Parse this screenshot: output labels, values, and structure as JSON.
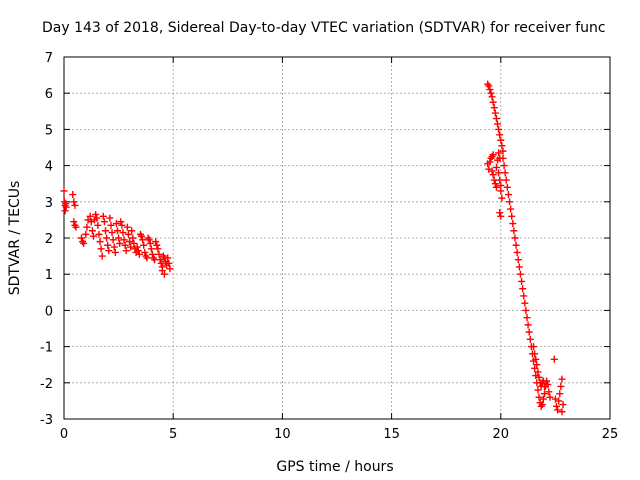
{
  "chart_data": {
    "type": "scatter",
    "title": "Day 143 of 2018, Sidereal Day-to-day VTEC variation (SDTVAR) for receiver func",
    "xlabel": "GPS time / hours",
    "ylabel": "SDTVAR / TECUs",
    "xlim": [
      0,
      25
    ],
    "ylim": [
      -3,
      7
    ],
    "x_ticks": [
      0,
      5,
      10,
      15,
      20,
      25
    ],
    "y_ticks": [
      -3,
      -2,
      -1,
      0,
      1,
      2,
      3,
      4,
      5,
      6,
      7
    ],
    "grid": true,
    "marker": "plus",
    "color": "#ff0000",
    "series": [
      {
        "name": "SDTVAR",
        "points": [
          [
            0.0,
            3.3
          ],
          [
            0.02,
            3.0
          ],
          [
            0.05,
            2.9
          ],
          [
            0.05,
            2.75
          ],
          [
            0.08,
            2.95
          ],
          [
            0.1,
            2.85
          ],
          [
            0.4,
            3.2
          ],
          [
            0.45,
            3.0
          ],
          [
            0.5,
            2.9
          ],
          [
            0.45,
            2.45
          ],
          [
            0.5,
            2.35
          ],
          [
            0.55,
            2.3
          ],
          [
            0.8,
            2.0
          ],
          [
            0.85,
            1.9
          ],
          [
            0.9,
            1.85
          ],
          [
            1.0,
            2.1
          ],
          [
            1.05,
            2.3
          ],
          [
            1.1,
            2.5
          ],
          [
            1.2,
            2.6
          ],
          [
            1.25,
            2.45
          ],
          [
            1.3,
            2.2
          ],
          [
            1.35,
            2.05
          ],
          [
            1.4,
            2.5
          ],
          [
            1.45,
            2.65
          ],
          [
            1.5,
            2.55
          ],
          [
            1.55,
            2.35
          ],
          [
            1.6,
            2.1
          ],
          [
            1.65,
            1.9
          ],
          [
            1.7,
            1.7
          ],
          [
            1.75,
            1.5
          ],
          [
            1.8,
            2.6
          ],
          [
            1.85,
            2.45
          ],
          [
            1.9,
            2.2
          ],
          [
            1.95,
            2.0
          ],
          [
            2.0,
            1.8
          ],
          [
            2.05,
            1.65
          ],
          [
            2.1,
            2.55
          ],
          [
            2.15,
            2.35
          ],
          [
            2.2,
            2.15
          ],
          [
            2.25,
            1.95
          ],
          [
            2.3,
            1.75
          ],
          [
            2.35,
            1.6
          ],
          [
            2.4,
            2.4
          ],
          [
            2.45,
            2.2
          ],
          [
            2.5,
            2.0
          ],
          [
            2.55,
            1.85
          ],
          [
            2.6,
            2.45
          ],
          [
            2.65,
            2.35
          ],
          [
            2.7,
            2.15
          ],
          [
            2.75,
            1.95
          ],
          [
            2.8,
            1.8
          ],
          [
            2.85,
            1.65
          ],
          [
            2.9,
            2.3
          ],
          [
            2.95,
            2.1
          ],
          [
            3.0,
            1.9
          ],
          [
            3.05,
            1.75
          ],
          [
            3.1,
            2.2
          ],
          [
            3.15,
            2.0
          ],
          [
            3.2,
            1.85
          ],
          [
            3.25,
            1.7
          ],
          [
            3.3,
            1.6
          ],
          [
            3.35,
            1.75
          ],
          [
            3.4,
            1.65
          ],
          [
            3.45,
            1.55
          ],
          [
            3.5,
            2.1
          ],
          [
            3.55,
            2.05
          ],
          [
            3.6,
            1.95
          ],
          [
            3.65,
            1.8
          ],
          [
            3.7,
            1.6
          ],
          [
            3.75,
            1.5
          ],
          [
            3.8,
            1.45
          ],
          [
            3.85,
            2.0
          ],
          [
            3.9,
            1.95
          ],
          [
            3.95,
            1.85
          ],
          [
            4.0,
            1.7
          ],
          [
            4.05,
            1.55
          ],
          [
            4.1,
            1.45
          ],
          [
            4.15,
            1.4
          ],
          [
            4.2,
            1.9
          ],
          [
            4.25,
            1.8
          ],
          [
            4.3,
            1.7
          ],
          [
            4.35,
            1.55
          ],
          [
            4.4,
            1.4
          ],
          [
            4.45,
            1.3
          ],
          [
            4.5,
            1.2
          ],
          [
            4.55,
            1.5
          ],
          [
            4.6,
            1.45
          ],
          [
            4.65,
            1.35
          ],
          [
            4.7,
            1.25
          ],
          [
            4.75,
            1.45
          ],
          [
            4.8,
            1.3
          ],
          [
            4.85,
            1.15
          ],
          [
            4.6,
            1.0
          ],
          [
            4.5,
            1.1
          ],
          [
            19.4,
            6.25
          ],
          [
            19.45,
            6.2
          ],
          [
            19.5,
            6.1
          ],
          [
            19.55,
            6.0
          ],
          [
            19.6,
            5.9
          ],
          [
            19.65,
            5.75
          ],
          [
            19.7,
            5.6
          ],
          [
            19.75,
            5.45
          ],
          [
            19.8,
            5.3
          ],
          [
            19.85,
            5.15
          ],
          [
            19.9,
            5.0
          ],
          [
            19.95,
            4.85
          ],
          [
            20.0,
            4.7
          ],
          [
            20.05,
            4.55
          ],
          [
            20.1,
            4.4
          ],
          [
            19.4,
            4.05
          ],
          [
            19.45,
            3.9
          ],
          [
            19.5,
            4.1
          ],
          [
            19.55,
            4.2
          ],
          [
            19.6,
            4.25
          ],
          [
            19.65,
            4.3
          ],
          [
            19.6,
            3.85
          ],
          [
            19.65,
            3.75
          ],
          [
            19.7,
            3.6
          ],
          [
            19.75,
            3.5
          ],
          [
            19.8,
            3.4
          ],
          [
            19.8,
            3.95
          ],
          [
            19.85,
            4.15
          ],
          [
            19.9,
            4.35
          ],
          [
            19.95,
            4.2
          ],
          [
            19.9,
            3.8
          ],
          [
            19.95,
            3.6
          ],
          [
            20.0,
            3.45
          ],
          [
            20.0,
            3.3
          ],
          [
            20.05,
            3.1
          ],
          [
            19.95,
            2.7
          ],
          [
            20.0,
            2.6
          ],
          [
            20.1,
            4.2
          ],
          [
            20.15,
            4.0
          ],
          [
            20.2,
            3.8
          ],
          [
            20.25,
            3.6
          ],
          [
            20.3,
            3.4
          ],
          [
            20.35,
            3.2
          ],
          [
            20.4,
            3.0
          ],
          [
            20.45,
            2.8
          ],
          [
            20.5,
            2.6
          ],
          [
            20.55,
            2.4
          ],
          [
            20.6,
            2.2
          ],
          [
            20.65,
            2.0
          ],
          [
            20.7,
            1.8
          ],
          [
            20.75,
            1.6
          ],
          [
            20.8,
            1.4
          ],
          [
            20.85,
            1.2
          ],
          [
            20.9,
            1.0
          ],
          [
            20.95,
            0.8
          ],
          [
            21.0,
            0.6
          ],
          [
            21.05,
            0.4
          ],
          [
            21.1,
            0.2
          ],
          [
            21.15,
            0.0
          ],
          [
            21.2,
            -0.2
          ],
          [
            21.25,
            -0.4
          ],
          [
            21.3,
            -0.6
          ],
          [
            21.35,
            -0.8
          ],
          [
            21.4,
            -1.0
          ],
          [
            21.45,
            -1.2
          ],
          [
            21.5,
            -1.4
          ],
          [
            21.55,
            -1.6
          ],
          [
            21.6,
            -1.8
          ],
          [
            21.65,
            -2.0
          ],
          [
            21.7,
            -2.2
          ],
          [
            21.75,
            -2.4
          ],
          [
            21.8,
            -2.55
          ],
          [
            21.85,
            -2.65
          ],
          [
            21.9,
            -2.6
          ],
          [
            21.95,
            -2.45
          ],
          [
            22.0,
            -2.3
          ],
          [
            22.05,
            -2.1
          ],
          [
            22.1,
            -1.95
          ],
          [
            22.15,
            -2.05
          ],
          [
            22.2,
            -2.25
          ],
          [
            22.25,
            -2.4
          ],
          [
            21.5,
            -1.0
          ],
          [
            21.55,
            -1.2
          ],
          [
            21.6,
            -1.35
          ],
          [
            21.65,
            -1.5
          ],
          [
            21.7,
            -1.7
          ],
          [
            21.75,
            -1.85
          ],
          [
            21.8,
            -2.0
          ],
          [
            21.85,
            -2.1
          ],
          [
            21.9,
            -2.0
          ],
          [
            21.95,
            -1.95
          ],
          [
            22.0,
            -2.1
          ],
          [
            22.45,
            -1.35
          ],
          [
            22.5,
            -2.45
          ],
          [
            22.55,
            -2.65
          ],
          [
            22.6,
            -2.75
          ],
          [
            22.65,
            -2.5
          ],
          [
            22.7,
            -2.3
          ],
          [
            22.75,
            -2.1
          ],
          [
            22.8,
            -1.9
          ],
          [
            22.85,
            -2.6
          ],
          [
            22.8,
            -2.8
          ]
        ]
      }
    ]
  }
}
